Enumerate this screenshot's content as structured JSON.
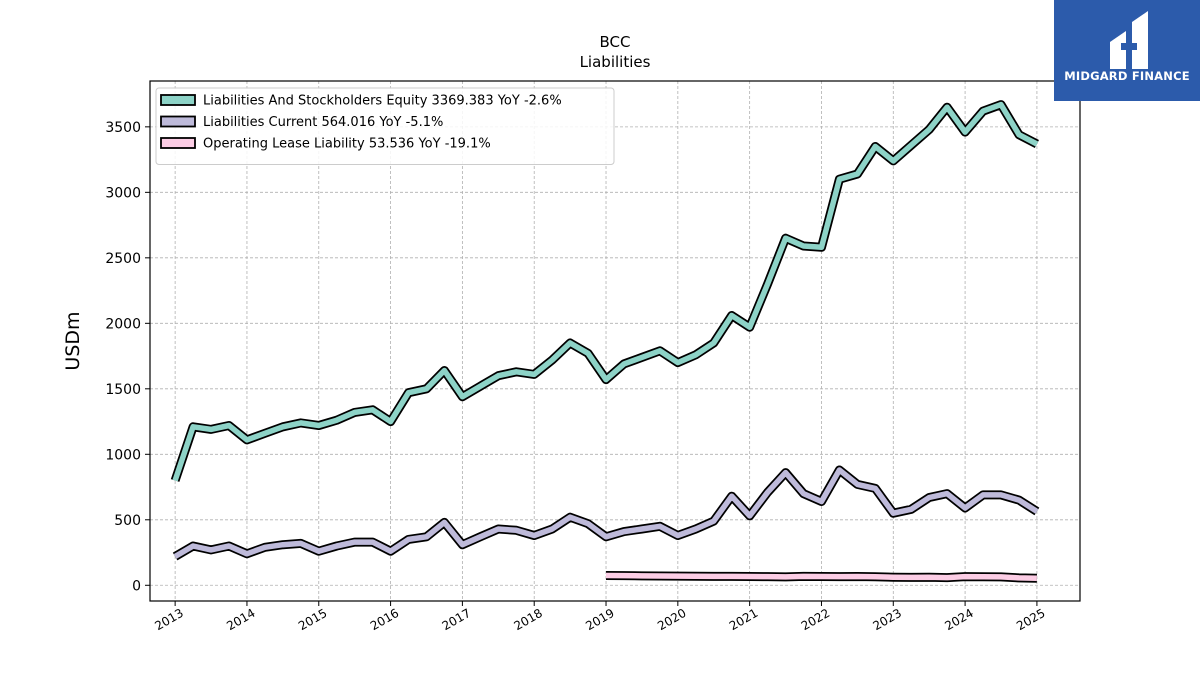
{
  "chart_data": {
    "type": "line",
    "title": "BCC",
    "subtitle": "Liabilities",
    "xlabel": "",
    "ylabel": "USDm",
    "xlim": [
      2012.65,
      2025.6
    ],
    "ylim": [
      -120,
      3850
    ],
    "x_ticks": [
      2013,
      2014,
      2015,
      2016,
      2017,
      2018,
      2019,
      2020,
      2021,
      2022,
      2023,
      2024,
      2025
    ],
    "x_tick_labels": [
      "2013",
      "2014",
      "2015",
      "2016",
      "2017",
      "2018",
      "2019",
      "2020",
      "2021",
      "2022",
      "2023",
      "2024",
      "2025"
    ],
    "y_ticks": [
      0,
      500,
      1000,
      1500,
      2000,
      2500,
      3000,
      3500
    ],
    "y_tick_labels": [
      "0",
      "500",
      "1000",
      "1500",
      "2000",
      "2500",
      "3000",
      "3500"
    ],
    "grid": true,
    "legend_position": "top-left",
    "series": [
      {
        "name": "Liabilities And Stockholders Equity  3369.383 YoY -2.6%",
        "color": "#8dd3c7",
        "x": [
          2013.0,
          2013.25,
          2013.5,
          2013.75,
          2014.0,
          2014.25,
          2014.5,
          2014.75,
          2015.0,
          2015.25,
          2015.5,
          2015.75,
          2016.0,
          2016.25,
          2016.5,
          2016.75,
          2017.0,
          2017.25,
          2017.5,
          2017.75,
          2018.0,
          2018.25,
          2018.5,
          2018.75,
          2019.0,
          2019.25,
          2019.5,
          2019.75,
          2020.0,
          2020.25,
          2020.5,
          2020.75,
          2021.0,
          2021.25,
          2021.5,
          2021.75,
          2022.0,
          2022.25,
          2022.5,
          2022.75,
          2023.0,
          2023.25,
          2023.5,
          2023.75,
          2024.0,
          2024.25,
          2024.5,
          2024.75,
          2025.0
        ],
        "values": [
          800,
          1210,
          1190,
          1220,
          1110,
          1160,
          1210,
          1240,
          1220,
          1260,
          1320,
          1340,
          1250,
          1470,
          1500,
          1640,
          1440,
          1520,
          1600,
          1630,
          1610,
          1720,
          1850,
          1770,
          1570,
          1690,
          1740,
          1790,
          1700,
          1760,
          1850,
          2060,
          1970,
          2300,
          2650,
          2590,
          2580,
          3100,
          3140,
          3350,
          3240,
          3360,
          3480,
          3650,
          3460,
          3620,
          3670,
          3440,
          3369
        ]
      },
      {
        "name": "Liabilities Current  564.016 YoY -5.1%",
        "color": "#bebada",
        "x": [
          2013.0,
          2013.25,
          2013.5,
          2013.75,
          2014.0,
          2014.25,
          2014.5,
          2014.75,
          2015.0,
          2015.25,
          2015.5,
          2015.75,
          2016.0,
          2016.25,
          2016.5,
          2016.75,
          2017.0,
          2017.25,
          2017.5,
          2017.75,
          2018.0,
          2018.25,
          2018.5,
          2018.75,
          2019.0,
          2019.25,
          2019.5,
          2019.75,
          2020.0,
          2020.25,
          2020.5,
          2020.75,
          2021.0,
          2021.25,
          2021.5,
          2021.75,
          2022.0,
          2022.25,
          2022.5,
          2022.75,
          2023.0,
          2023.25,
          2023.5,
          2023.75,
          2024.0,
          2024.25,
          2024.5,
          2024.75,
          2025.0
        ],
        "values": [
          220,
          300,
          270,
          300,
          240,
          290,
          310,
          320,
          260,
          300,
          330,
          330,
          260,
          350,
          370,
          480,
          310,
          370,
          430,
          420,
          380,
          430,
          520,
          470,
          370,
          410,
          430,
          450,
          380,
          430,
          490,
          680,
          530,
          710,
          860,
          700,
          640,
          880,
          770,
          740,
          550,
          580,
          670,
          700,
          590,
          690,
          690,
          650,
          564
        ]
      },
      {
        "name": "Operating Lease Liability  53.536 YoY -19.1%",
        "color": "#fccde5",
        "x": [
          2019.0,
          2019.25,
          2019.5,
          2019.75,
          2020.0,
          2020.25,
          2020.5,
          2020.75,
          2021.0,
          2021.25,
          2021.5,
          2021.75,
          2022.0,
          2022.25,
          2022.5,
          2022.75,
          2023.0,
          2023.25,
          2023.5,
          2023.75,
          2024.0,
          2024.25,
          2024.5,
          2024.75,
          2025.0
        ],
        "values": [
          75,
          74,
          72,
          71,
          70,
          69,
          68,
          68,
          67,
          66,
          64,
          68,
          67,
          66,
          67,
          65,
          62,
          60,
          61,
          59,
          66,
          65,
          64,
          56,
          54
        ]
      }
    ]
  },
  "logo": {
    "text": "MIDGARD FINANCE",
    "background": "#2c5bab"
  }
}
